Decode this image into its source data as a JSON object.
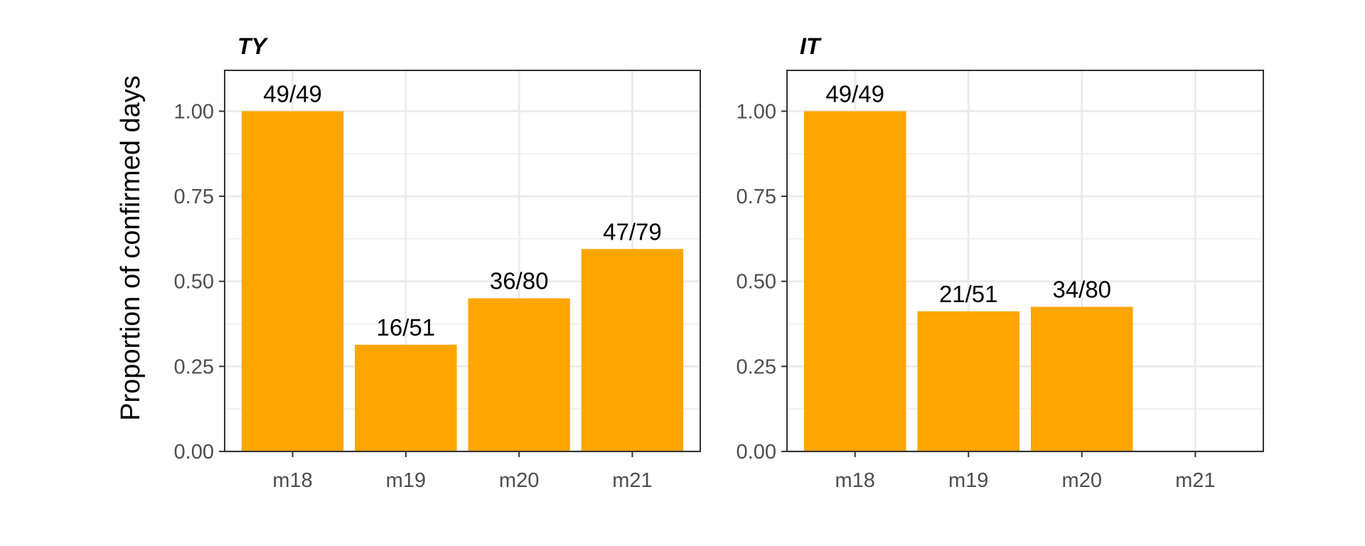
{
  "chart_data": {
    "type": "bar",
    "ylabel": "Proportion of confirmed days",
    "ylim": [
      0,
      1.12
    ],
    "yticks": [
      0,
      0.25,
      0.5,
      0.75,
      1
    ],
    "ytick_labels": [
      "0.00",
      "0.25",
      "0.50",
      "0.75",
      "1.00"
    ],
    "colors": {
      "bar": "#FFA500",
      "grid": "#EBEBEB",
      "frame": "#333333",
      "tick": "#4D4D4D"
    },
    "grid": true,
    "panels": [
      {
        "title": "TY",
        "categories": [
          "m18",
          "m19",
          "m20",
          "m21"
        ],
        "values": [
          1.0,
          0.3137,
          0.45,
          0.5949
        ],
        "labels": [
          "49/49",
          "16/51",
          "36/80",
          "47/79"
        ]
      },
      {
        "title": "IT",
        "categories": [
          "m18",
          "m19",
          "m20",
          "m21"
        ],
        "values": [
          1.0,
          0.4118,
          0.425,
          null
        ],
        "labels": [
          "49/49",
          "21/51",
          "34/80",
          ""
        ]
      }
    ]
  }
}
